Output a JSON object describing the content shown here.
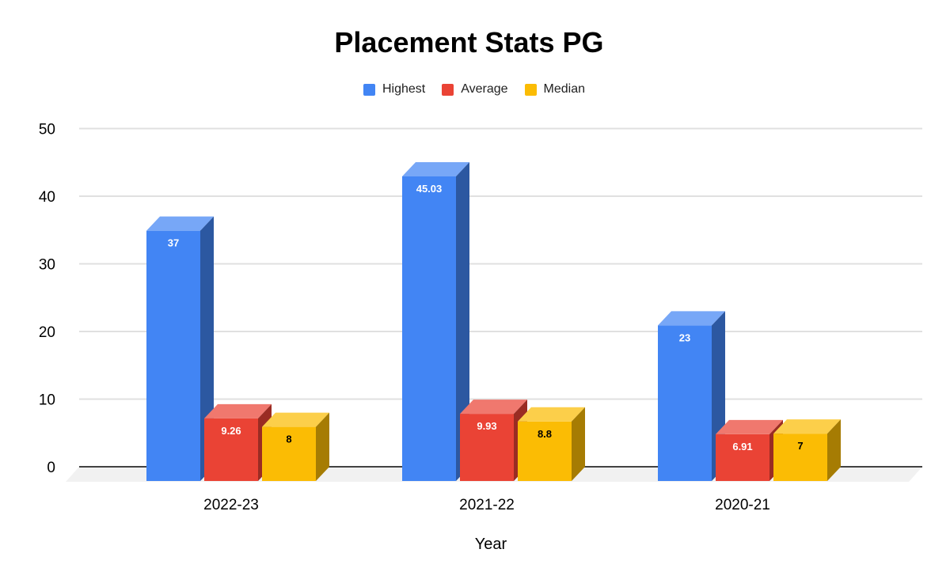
{
  "chart_data": {
    "type": "bar",
    "style": "3d-column",
    "title": "Placement Stats PG",
    "xlabel": "Year",
    "ylabel": "",
    "categories": [
      "2022-23",
      "2021-22",
      "2020-21"
    ],
    "series": [
      {
        "name": "Highest",
        "color": "#4285f4",
        "label_color": "#ffffff",
        "values": [
          37,
          45.03,
          23
        ]
      },
      {
        "name": "Average",
        "color": "#ea4335",
        "label_color": "#ffffff",
        "values": [
          9.26,
          9.93,
          6.91
        ]
      },
      {
        "name": "Median",
        "color": "#fbbc04",
        "label_color": "#000000",
        "values": [
          8,
          8.8,
          7
        ]
      }
    ],
    "ylim": [
      0,
      50
    ],
    "yticks": [
      0,
      10,
      20,
      30,
      40,
      50
    ],
    "grid": true,
    "legend_position": "top"
  },
  "colors": {
    "background": "#ffffff",
    "gridline": "#e0e0e0",
    "axis_line": "#424242",
    "floor": "#f1f1f1",
    "text": "#000000"
  }
}
